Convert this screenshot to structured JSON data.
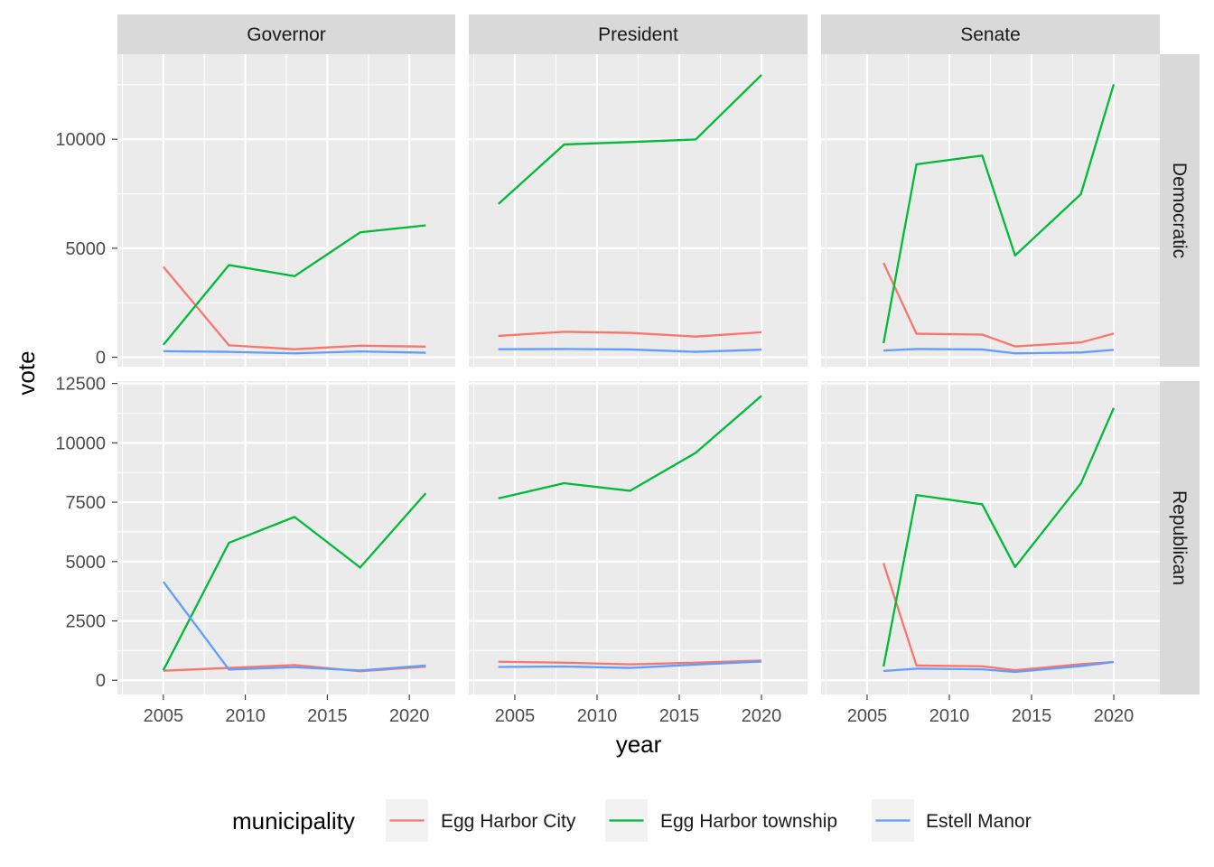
{
  "chart_data": {
    "type": "line",
    "facet_columns": [
      "Governor",
      "President",
      "Senate"
    ],
    "facet_rows": [
      "Democratic",
      "Republican"
    ],
    "xlabel": "year",
    "ylabel": "vote",
    "xlim": [
      2002.2,
      2022.8
    ],
    "x_ticks": [
      2005,
      2010,
      2015,
      2020
    ],
    "rows": {
      "Democratic": {
        "ylim": [
          -430,
          13900
        ],
        "y_ticks": [
          0,
          5000,
          10000
        ]
      },
      "Republican": {
        "ylim": [
          -600,
          12600
        ],
        "y_ticks": [
          0,
          2500,
          5000,
          7500,
          10000,
          12500
        ]
      }
    },
    "grid": true,
    "legend": {
      "title": "municipality",
      "position": "bottom",
      "entries": [
        {
          "name": "Egg Harbor City",
          "color": "#f8766d"
        },
        {
          "name": "Egg Harbor township",
          "color": "#00ba38"
        },
        {
          "name": "Estell Manor",
          "color": "#619cff"
        }
      ]
    },
    "panels": [
      {
        "office": "Governor",
        "party": "Democratic",
        "series": [
          {
            "name": "Egg Harbor City",
            "x": [
              2005,
              2009,
              2013,
              2017,
              2021
            ],
            "y": [
              4150,
              550,
              370,
              530,
              490
            ]
          },
          {
            "name": "Egg Harbor township",
            "x": [
              2005,
              2009,
              2013,
              2017,
              2021
            ],
            "y": [
              570,
              4230,
              3720,
              5730,
              6050
            ]
          },
          {
            "name": "Estell Manor",
            "x": [
              2005,
              2009,
              2013,
              2017,
              2021
            ],
            "y": [
              280,
              250,
              180,
              270,
              210
            ]
          }
        ]
      },
      {
        "office": "President",
        "party": "Democratic",
        "series": [
          {
            "name": "Egg Harbor City",
            "x": [
              2004,
              2008,
              2012,
              2016,
              2020
            ],
            "y": [
              980,
              1170,
              1120,
              950,
              1150
            ]
          },
          {
            "name": "Egg Harbor township",
            "x": [
              2004,
              2008,
              2012,
              2016,
              2020
            ],
            "y": [
              7030,
              9760,
              9870,
              9990,
              12950
            ]
          },
          {
            "name": "Estell Manor",
            "x": [
              2004,
              2008,
              2012,
              2016,
              2020
            ],
            "y": [
              370,
              380,
              360,
              250,
              350
            ]
          }
        ]
      },
      {
        "office": "Senate",
        "party": "Democratic",
        "series": [
          {
            "name": "Egg Harbor City",
            "x": [
              2006,
              2008,
              2012,
              2014,
              2018,
              2020
            ],
            "y": [
              4330,
              1080,
              1040,
              500,
              680,
              1090
            ]
          },
          {
            "name": "Egg Harbor township",
            "x": [
              2006,
              2008,
              2012,
              2014,
              2018,
              2020
            ],
            "y": [
              650,
              8850,
              9250,
              4670,
              7480,
              12520
            ]
          },
          {
            "name": "Estell Manor",
            "x": [
              2006,
              2008,
              2012,
              2014,
              2018,
              2020
            ],
            "y": [
              310,
              380,
              360,
              180,
              220,
              340
            ]
          }
        ]
      },
      {
        "office": "Governor",
        "party": "Republican",
        "series": [
          {
            "name": "Egg Harbor City",
            "x": [
              2005,
              2009,
              2013,
              2017,
              2021
            ],
            "y": [
              400,
              520,
              640,
              380,
              570
            ]
          },
          {
            "name": "Egg Harbor township",
            "x": [
              2005,
              2009,
              2013,
              2017,
              2021
            ],
            "y": [
              420,
              5790,
              6880,
              4750,
              7880
            ]
          },
          {
            "name": "Estell Manor",
            "x": [
              2005,
              2009,
              2013,
              2017,
              2021
            ],
            "y": [
              4150,
              450,
              550,
              410,
              620
            ]
          }
        ]
      },
      {
        "office": "President",
        "party": "Republican",
        "series": [
          {
            "name": "Egg Harbor City",
            "x": [
              2004,
              2008,
              2012,
              2016,
              2020
            ],
            "y": [
              780,
              740,
              670,
              740,
              830
            ]
          },
          {
            "name": "Egg Harbor township",
            "x": [
              2004,
              2008,
              2012,
              2016,
              2020
            ],
            "y": [
              7660,
              8300,
              7980,
              9580,
              11980
            ]
          },
          {
            "name": "Estell Manor",
            "x": [
              2004,
              2008,
              2012,
              2016,
              2020
            ],
            "y": [
              560,
              580,
              520,
              660,
              790
            ]
          }
        ]
      },
      {
        "office": "Senate",
        "party": "Republican",
        "series": [
          {
            "name": "Egg Harbor City",
            "x": [
              2006,
              2008,
              2012,
              2014,
              2018,
              2020
            ],
            "y": [
              4930,
              620,
              590,
              420,
              680,
              770
            ]
          },
          {
            "name": "Egg Harbor township",
            "x": [
              2006,
              2008,
              2012,
              2014,
              2018,
              2020
            ],
            "y": [
              580,
              7800,
              7410,
              4770,
              8290,
              11470
            ]
          },
          {
            "name": "Estell Manor",
            "x": [
              2006,
              2008,
              2012,
              2014,
              2018,
              2020
            ],
            "y": [
              390,
              490,
              460,
              350,
              600,
              770
            ]
          }
        ]
      }
    ]
  }
}
